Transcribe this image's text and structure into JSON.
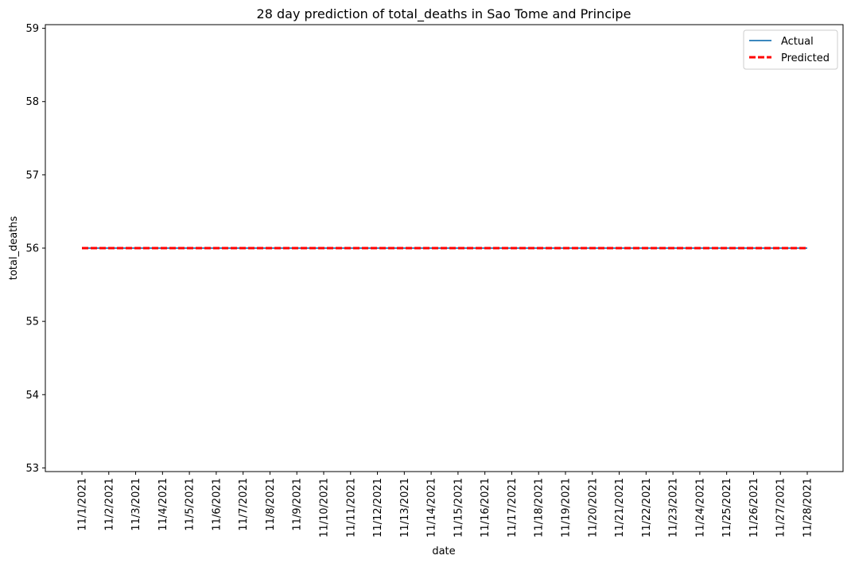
{
  "chart_data": {
    "type": "line",
    "title": "28 day prediction of total_deaths in Sao Tome and Principe",
    "xlabel": "date",
    "ylabel": "total_deaths",
    "categories": [
      "11/1/2021",
      "11/2/2021",
      "11/3/2021",
      "11/4/2021",
      "11/5/2021",
      "11/6/2021",
      "11/7/2021",
      "11/8/2021",
      "11/9/2021",
      "11/10/2021",
      "11/11/2021",
      "11/12/2021",
      "11/13/2021",
      "11/14/2021",
      "11/15/2021",
      "11/16/2021",
      "11/17/2021",
      "11/18/2021",
      "11/19/2021",
      "11/20/2021",
      "11/21/2021",
      "11/22/2021",
      "11/23/2021",
      "11/24/2021",
      "11/25/2021",
      "11/26/2021",
      "11/27/2021",
      "11/28/2021"
    ],
    "ylim": [
      52.95,
      59.05
    ],
    "yticks": [
      53,
      54,
      55,
      56,
      57,
      58,
      59
    ],
    "grid": false,
    "legend_position": "top-right",
    "series": [
      {
        "name": "Actual",
        "color": "#1f77b4",
        "style": "solid",
        "values": [
          56,
          56,
          56,
          56,
          56,
          56,
          56,
          56,
          56,
          56,
          56,
          56,
          56,
          56,
          56,
          56,
          56,
          56,
          56,
          56,
          56,
          56,
          56,
          56,
          56,
          56,
          56,
          56
        ]
      },
      {
        "name": "Predicted",
        "color": "#ff0000",
        "style": "dashed",
        "values": [
          56,
          56,
          56,
          56,
          56,
          56,
          56,
          56,
          56,
          56,
          56,
          56,
          56,
          56,
          56,
          56,
          56,
          56,
          56,
          56,
          56,
          56,
          56,
          56,
          56,
          56,
          56,
          56
        ]
      }
    ]
  }
}
